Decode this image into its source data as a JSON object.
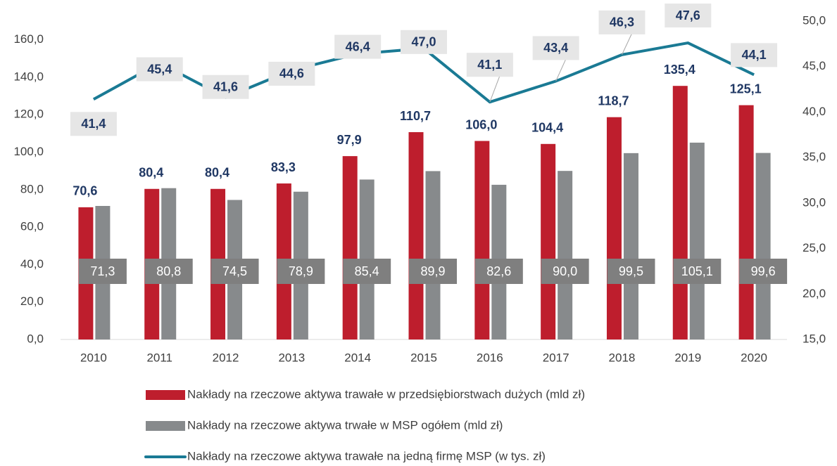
{
  "chart_data": {
    "type": "bar_line",
    "categories": [
      "2010",
      "2011",
      "2012",
      "2013",
      "2014",
      "2015",
      "2016",
      "2017",
      "2018",
      "2019",
      "2020"
    ],
    "series": [
      {
        "name": "Nakłady na rzeczowe aktywa trawałe w przedsiębiorstwach dużych (mld zł)",
        "color": "#be1e2d",
        "type": "bar",
        "values": [
          70.6,
          80.4,
          80.4,
          83.3,
          97.9,
          110.7,
          106.0,
          104.4,
          118.7,
          135.4,
          125.1
        ],
        "value_labels": [
          "70,6",
          "80,4",
          "80,4",
          "83,3",
          "97,9",
          "110,7",
          "106,0",
          "104,4",
          "118,7",
          "135,4",
          "125,1"
        ]
      },
      {
        "name": "Nakłady na rzeczowe aktywa trwałe w MSP ogółem (mld zł)",
        "color": "#878a8c",
        "type": "bar",
        "values": [
          71.3,
          80.8,
          74.5,
          78.9,
          85.4,
          89.9,
          82.6,
          90.0,
          99.5,
          105.1,
          99.6
        ],
        "value_labels": [
          "71,3",
          "80,8",
          "74,5",
          "78,9",
          "85,4",
          "89,9",
          "82,6",
          "90,0",
          "99,5",
          "105,1",
          "99,6"
        ]
      },
      {
        "name": "Nakłady na rzeczowe aktywa trawałe na jedną firmę MSP (w tys. zł)",
        "color": "#1a7a94",
        "type": "line",
        "axis": "y2",
        "values": [
          41.4,
          45.4,
          41.6,
          44.6,
          46.4,
          47.0,
          41.1,
          43.4,
          46.3,
          47.6,
          44.1
        ],
        "value_labels": [
          "41,4",
          "45,4",
          "41,6",
          "44,6",
          "46,4",
          "47,0",
          "41,1",
          "43,4",
          "46,3",
          "47,6",
          "44,1"
        ]
      }
    ],
    "ylim": [
      0,
      170
    ],
    "yticks": [
      {
        "value": 0,
        "label": "0,0"
      },
      {
        "value": 20,
        "label": "20,0"
      },
      {
        "value": 40,
        "label": "40,0"
      },
      {
        "value": 60,
        "label": "60,0"
      },
      {
        "value": 80,
        "label": "80,0"
      },
      {
        "value": 100,
        "label": "100,0"
      },
      {
        "value": 120,
        "label": "120,0"
      },
      {
        "value": 140,
        "label": "140,0"
      },
      {
        "value": 160,
        "label": "160,0"
      }
    ],
    "y2lim": [
      15,
      50
    ],
    "y2ticks": [
      {
        "value": 15,
        "label": "15,0"
      },
      {
        "value": 20,
        "label": "20,0"
      },
      {
        "value": 25,
        "label": "25,0"
      },
      {
        "value": 30,
        "label": "30,0"
      },
      {
        "value": 35,
        "label": "35,0"
      },
      {
        "value": 40,
        "label": "40,0"
      },
      {
        "value": 45,
        "label": "45,0"
      },
      {
        "value": 50,
        "label": "50,0"
      }
    ],
    "grid": false,
    "legend": "bottom"
  }
}
